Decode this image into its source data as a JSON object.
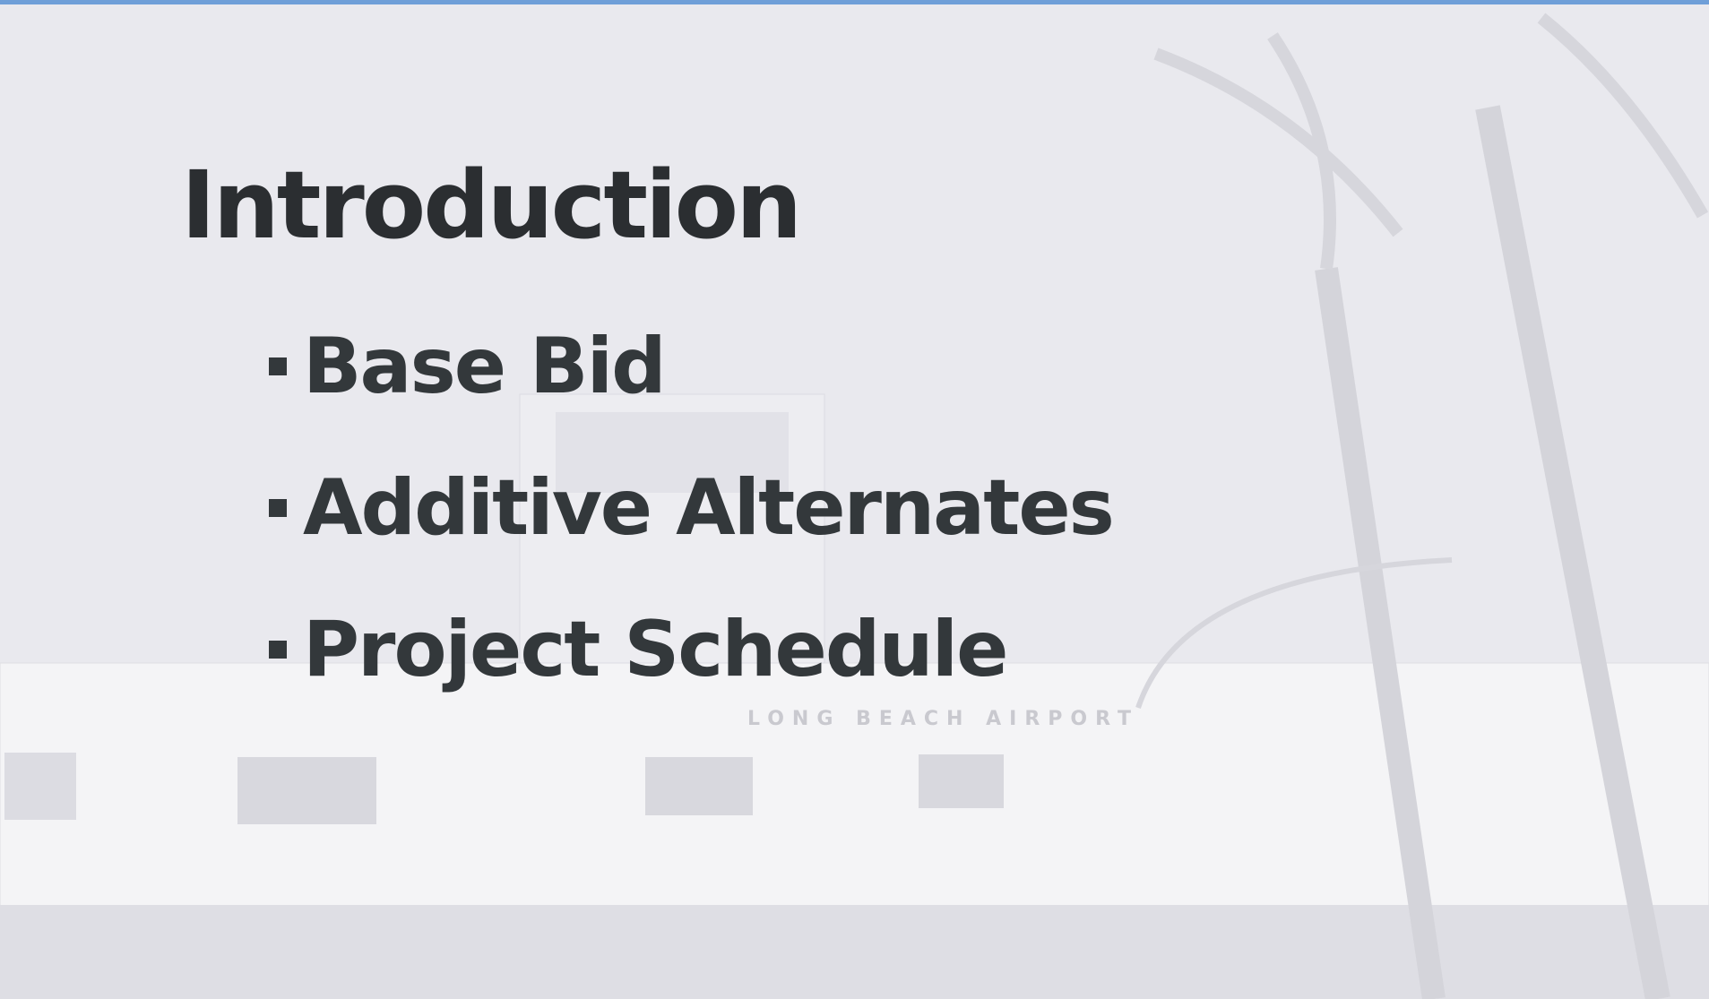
{
  "slide": {
    "title": "Introduction",
    "bullets": [
      "Base Bid",
      "Additive Alternates",
      "Project Schedule"
    ]
  },
  "background": {
    "sign": "LONG BEACH AIRPORT"
  }
}
